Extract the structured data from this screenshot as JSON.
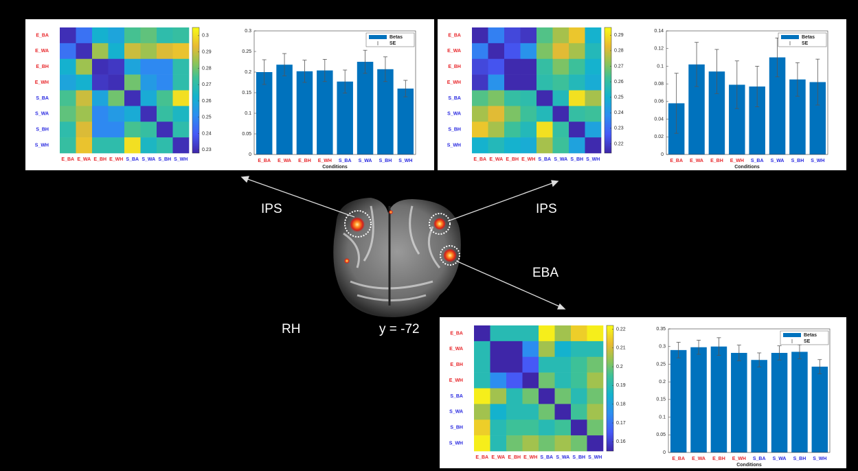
{
  "brain": {
    "labels": [
      "IPS",
      "IPS",
      "EBA"
    ],
    "hemisphere": "RH",
    "slice": "y = -72"
  },
  "chart_data": [
    {
      "type": "heatmap",
      "colormap": "parula",
      "x": [
        "E_BA",
        "E_WA",
        "E_BH",
        "E_WH",
        "S_BA",
        "S_WA",
        "S_BH",
        "S_WH"
      ],
      "y": [
        "E_BA",
        "E_WA",
        "E_BH",
        "E_WH",
        "S_BA",
        "S_WA",
        "S_BH",
        "S_WH"
      ],
      "category_colors": [
        "#e8262a",
        "#e8262a",
        "#e8262a",
        "#e8262a",
        "#2828e0",
        "#2828e0",
        "#2828e0",
        "#2828e0"
      ],
      "values": [
        [
          0.23,
          0.245,
          0.262,
          0.258,
          0.275,
          0.278,
          0.27,
          0.272
        ],
        [
          0.245,
          0.23,
          0.285,
          0.262,
          0.29,
          0.285,
          0.292,
          0.295
        ],
        [
          0.262,
          0.285,
          0.23,
          0.232,
          0.258,
          0.25,
          0.25,
          0.27
        ],
        [
          0.258,
          0.262,
          0.232,
          0.23,
          0.28,
          0.255,
          0.25,
          0.27
        ],
        [
          0.275,
          0.29,
          0.258,
          0.28,
          0.23,
          0.26,
          0.275,
          0.3
        ],
        [
          0.278,
          0.285,
          0.25,
          0.255,
          0.26,
          0.23,
          0.272,
          0.265
        ],
        [
          0.27,
          0.292,
          0.25,
          0.25,
          0.275,
          0.272,
          0.23,
          0.27
        ],
        [
          0.272,
          0.295,
          0.27,
          0.27,
          0.3,
          0.265,
          0.27,
          0.23
        ]
      ],
      "clim": [
        0.228,
        0.305
      ],
      "cticks": [
        0.23,
        0.24,
        0.25,
        0.26,
        0.27,
        0.28,
        0.29,
        0.3
      ]
    },
    {
      "type": "bar",
      "categories": [
        "E_BA",
        "E_WA",
        "E_BH",
        "E_WH",
        "S_BA",
        "S_WA",
        "S_BH",
        "S_WH"
      ],
      "category_colors": [
        "#e8262a",
        "#e8262a",
        "#e8262a",
        "#e8262a",
        "#2828e0",
        "#2828e0",
        "#2828e0",
        "#2828e0"
      ],
      "series": [
        {
          "name": "Betas",
          "color": "#0072bd",
          "values": [
            0.2,
            0.218,
            0.202,
            0.204,
            0.177,
            0.225,
            0.207,
            0.16
          ],
          "errors": [
            0.03,
            0.027,
            0.027,
            0.027,
            0.028,
            0.028,
            0.03,
            0.02
          ]
        }
      ],
      "error_name": "SE",
      "xlabel": "Conditions",
      "ylim": [
        0,
        0.3
      ],
      "yticks": [
        0,
        0.05,
        0.1,
        0.15,
        0.2,
        0.25,
        0.3
      ],
      "legend": "upper-right"
    },
    {
      "type": "heatmap",
      "colormap": "parula",
      "x": [
        "E_BA",
        "E_WA",
        "E_BH",
        "E_WH",
        "S_BA",
        "S_WA",
        "S_BH",
        "S_WH"
      ],
      "y": [
        "E_BA",
        "E_WA",
        "E_BH",
        "E_WH",
        "S_BA",
        "S_WA",
        "S_BH",
        "S_WH"
      ],
      "category_colors": [
        "#e8262a",
        "#e8262a",
        "#e8262a",
        "#e8262a",
        "#2828e0",
        "#2828e0",
        "#2828e0",
        "#2828e0"
      ],
      "values": [
        [
          0.215,
          0.235,
          0.222,
          0.218,
          0.265,
          0.275,
          0.285,
          0.25
        ],
        [
          0.235,
          0.215,
          0.225,
          0.24,
          0.27,
          0.282,
          0.275,
          0.255
        ],
        [
          0.222,
          0.225,
          0.215,
          0.215,
          0.26,
          0.27,
          0.262,
          0.25
        ],
        [
          0.218,
          0.24,
          0.215,
          0.215,
          0.258,
          0.262,
          0.255,
          0.248
        ],
        [
          0.265,
          0.27,
          0.26,
          0.258,
          0.215,
          0.255,
          0.29,
          0.275
        ],
        [
          0.275,
          0.282,
          0.27,
          0.262,
          0.255,
          0.215,
          0.26,
          0.262
        ],
        [
          0.285,
          0.275,
          0.262,
          0.255,
          0.29,
          0.26,
          0.215,
          0.245
        ],
        [
          0.25,
          0.255,
          0.25,
          0.248,
          0.275,
          0.262,
          0.245,
          0.215
        ]
      ],
      "clim": [
        0.214,
        0.295
      ],
      "cticks": [
        0.22,
        0.23,
        0.24,
        0.25,
        0.26,
        0.27,
        0.28,
        0.29
      ]
    },
    {
      "type": "bar",
      "categories": [
        "E_BA",
        "E_WA",
        "E_BH",
        "E_WH",
        "S_BA",
        "S_WA",
        "S_BH",
        "S_WH"
      ],
      "category_colors": [
        "#e8262a",
        "#e8262a",
        "#e8262a",
        "#e8262a",
        "#2828e0",
        "#2828e0",
        "#2828e0",
        "#2828e0"
      ],
      "series": [
        {
          "name": "Betas",
          "color": "#0072bd",
          "values": [
            0.058,
            0.102,
            0.094,
            0.079,
            0.077,
            0.11,
            0.085,
            0.082
          ],
          "errors": [
            0.034,
            0.025,
            0.025,
            0.027,
            0.023,
            0.022,
            0.019,
            0.026
          ]
        }
      ],
      "error_name": "SE",
      "xlabel": "Conditions",
      "ylim": [
        0,
        0.14
      ],
      "yticks": [
        0,
        0.02,
        0.04,
        0.06,
        0.08,
        0.1,
        0.12,
        0.14
      ],
      "legend": "upper-right"
    },
    {
      "type": "heatmap",
      "colormap": "parula",
      "x": [
        "E_BA",
        "E_WA",
        "E_BH",
        "E_WH",
        "S_BA",
        "S_WA",
        "S_BH",
        "S_WH"
      ],
      "y": [
        "E_BA",
        "E_WA",
        "E_BH",
        "E_WH",
        "S_BA",
        "S_WA",
        "S_BH",
        "S_WH"
      ],
      "category_colors": [
        "#e8262a",
        "#e8262a",
        "#e8262a",
        "#e8262a",
        "#2828e0",
        "#2828e0",
        "#2828e0",
        "#2828e0"
      ],
      "values": [
        [
          0.155,
          0.19,
          0.19,
          0.19,
          0.22,
          0.205,
          0.215,
          0.22
        ],
        [
          0.19,
          0.155,
          0.155,
          0.175,
          0.205,
          0.185,
          0.19,
          0.19
        ],
        [
          0.19,
          0.155,
          0.155,
          0.165,
          0.19,
          0.19,
          0.195,
          0.2
        ],
        [
          0.19,
          0.175,
          0.165,
          0.155,
          0.2,
          0.19,
          0.195,
          0.205
        ],
        [
          0.22,
          0.205,
          0.19,
          0.2,
          0.155,
          0.2,
          0.19,
          0.2
        ],
        [
          0.205,
          0.185,
          0.19,
          0.19,
          0.2,
          0.155,
          0.195,
          0.205
        ],
        [
          0.215,
          0.19,
          0.195,
          0.195,
          0.19,
          0.195,
          0.155,
          0.2
        ],
        [
          0.22,
          0.19,
          0.2,
          0.205,
          0.2,
          0.205,
          0.2,
          0.155
        ]
      ],
      "clim": [
        0.155,
        0.222
      ],
      "cticks": [
        0.16,
        0.17,
        0.18,
        0.19,
        0.2,
        0.21,
        0.22
      ]
    },
    {
      "type": "bar",
      "categories": [
        "E_BA",
        "E_WA",
        "E_BH",
        "E_WH",
        "S_BA",
        "S_WA",
        "S_BH",
        "S_WH"
      ],
      "category_colors": [
        "#e8262a",
        "#e8262a",
        "#e8262a",
        "#e8262a",
        "#2828e0",
        "#2828e0",
        "#2828e0",
        "#2828e0"
      ],
      "series": [
        {
          "name": "Betas",
          "color": "#0072bd",
          "values": [
            0.29,
            0.298,
            0.3,
            0.282,
            0.262,
            0.282,
            0.285,
            0.243
          ],
          "errors": [
            0.022,
            0.02,
            0.025,
            0.022,
            0.02,
            0.02,
            0.02,
            0.02
          ]
        }
      ],
      "error_name": "SE",
      "xlabel": "Conditions",
      "ylim": [
        0,
        0.35
      ],
      "yticks": [
        0,
        0.05,
        0.1,
        0.15,
        0.2,
        0.25,
        0.3,
        0.35
      ],
      "legend": "upper-right"
    }
  ]
}
